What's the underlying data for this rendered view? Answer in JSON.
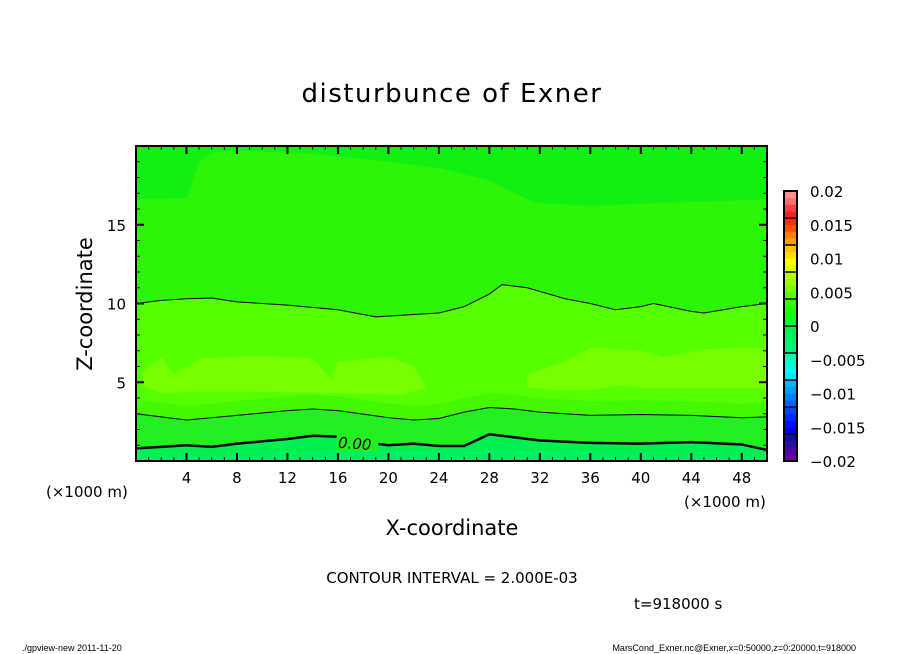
{
  "chart_data": {
    "type": "contour",
    "title": "disturbunce of Exner",
    "xlabel": "X-coordinate",
    "ylabel": "Z-coordinate",
    "x_unit_label": "(×1000 m)",
    "z_unit_label": "(×1000 m)",
    "xlim": [
      0,
      50
    ],
    "ylim": [
      0,
      20
    ],
    "x_ticks": [
      4,
      8,
      12,
      16,
      20,
      24,
      28,
      32,
      36,
      40,
      44,
      48
    ],
    "y_ticks": [
      5,
      10,
      15
    ],
    "contour_interval_text": "CONTOUR INTERVAL = 2.000E-03",
    "time_text": "t=918000 s",
    "contour_label": "0.00",
    "contours": [
      {
        "level": 0.0,
        "x": [
          0,
          2,
          4,
          6,
          8,
          12,
          14,
          16,
          18,
          20,
          22,
          24,
          26,
          28,
          30,
          32,
          36,
          40,
          44,
          48,
          50
        ],
        "z": [
          0.8,
          0.9,
          1.0,
          0.9,
          1.1,
          1.4,
          1.6,
          1.55,
          1.2,
          1.0,
          1.1,
          0.95,
          0.95,
          1.7,
          1.5,
          1.3,
          1.15,
          1.1,
          1.2,
          1.05,
          0.7
        ]
      },
      {
        "level": 0.002,
        "x": [
          0,
          2,
          4,
          6,
          8,
          12,
          14,
          16,
          20,
          22,
          24,
          26,
          28,
          30,
          32,
          36,
          40,
          44,
          48,
          50
        ],
        "z": [
          3.0,
          2.8,
          2.6,
          2.75,
          2.9,
          3.2,
          3.3,
          3.2,
          2.75,
          2.6,
          2.7,
          3.1,
          3.4,
          3.3,
          3.1,
          2.9,
          2.95,
          2.9,
          2.75,
          2.8
        ]
      },
      {
        "level": 0.004,
        "x": [
          0,
          2,
          4,
          6,
          8,
          12,
          16,
          19,
          22,
          24,
          26,
          28,
          29,
          31,
          34,
          36,
          38,
          40,
          41,
          44,
          45,
          48,
          50
        ],
        "z": [
          10.0,
          10.2,
          10.3,
          10.35,
          10.1,
          9.9,
          9.6,
          9.15,
          9.3,
          9.4,
          9.8,
          10.6,
          11.2,
          11.0,
          10.3,
          10.0,
          9.6,
          9.8,
          10.0,
          9.5,
          9.4,
          9.8,
          10.0
        ]
      }
    ],
    "colorbar": {
      "min": -0.02,
      "max": 0.02,
      "tick_labels": [
        "0.02",
        "0.015",
        "0.01",
        "0.005",
        "0",
        "-0.005",
        "-0.01",
        "-0.015",
        "-0.02"
      ],
      "colors": [
        "#6a00a0",
        "#4a0aa0",
        "#2a10a0",
        "#1010a0",
        "#0000e0",
        "#0010ff",
        "#0028ff",
        "#0040ff",
        "#0060ff",
        "#0080ff",
        "#009cff",
        "#00b4ff",
        "#00e8ff",
        "#00fff0",
        "#00ffd0",
        "#00ffb0",
        "#00f080",
        "#00f070",
        "#00f060",
        "#00f048",
        "#00ff30",
        "#10ff10",
        "#20ff00",
        "#33ff00",
        "#55ff00",
        "#77ff00",
        "#99ff00",
        "#bbff00",
        "#ddff00",
        "#ffff00",
        "#ffe000",
        "#ffc000",
        "#ffa000",
        "#ff8000",
        "#ff5000",
        "#ff3000",
        "#ff2020",
        "#ff4040",
        "#ff7070",
        "#ff9090"
      ]
    },
    "fill_colors": {
      "top": "#12f012",
      "upper": "#2cf508",
      "middle": "#55ff00",
      "blob": "#77ff00",
      "lower": "#44f800",
      "near_zero": "#22f020",
      "negative": "#00f050",
      "ground": "#00f062"
    }
  },
  "footer": {
    "left": "./gpview-new  2011-11-20",
    "right": "MarsCond_Exner.nc@Exner,x=0:50000,z=0:20000,t=918000"
  }
}
